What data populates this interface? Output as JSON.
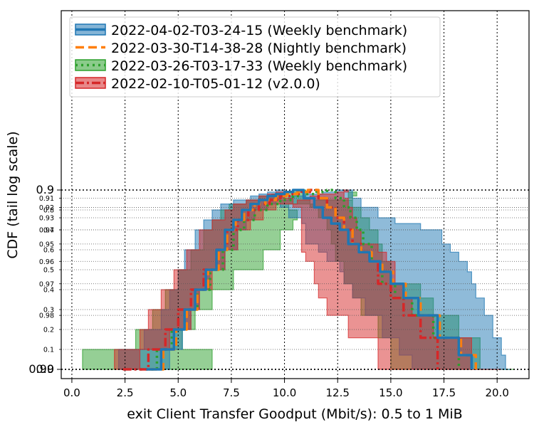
{
  "chart_data": {
    "type": "line",
    "xlabel": "exit Client Transfer Goodput (Mbit/s): 0.5 to 1 MiB",
    "ylabel": "CDF (tail log scale)",
    "xlim": [
      -0.5,
      21.5
    ],
    "x_ticks": [
      0,
      2.5,
      5,
      7.5,
      10,
      12.5,
      15,
      17.5,
      20
    ],
    "x_tick_labels": [
      "0.0",
      "2.5",
      "5.0",
      "7.5",
      "10.0",
      "12.5",
      "15.0",
      "17.5",
      "20.0"
    ],
    "y_scale": "tail-log",
    "y_major_ticks": [
      0.0,
      0.9,
      0.99
    ],
    "y_major_labels": [
      "0.0",
      "0.9",
      "0.99"
    ],
    "y_minor_ticks": [
      0.1,
      0.2,
      0.3,
      0.4,
      0.5,
      0.6,
      0.7,
      0.8,
      0.91,
      0.92,
      0.93,
      0.94,
      0.95,
      0.96,
      0.97,
      0.98
    ],
    "y_minor_labels": [
      "0.1",
      "0.2",
      "0.3",
      "0.4",
      "0.5",
      "0.6",
      "0.7",
      "0.8",
      "0.91",
      "0.92",
      "0.93",
      "0.94",
      "0.95",
      "0.96",
      "0.97",
      "0.98"
    ],
    "grid": true,
    "legend_position": "top-left",
    "colors": {
      "blue": "#1f77b4",
      "orange": "#ff7f0e",
      "green": "#2ca02c",
      "red": "#d62728"
    },
    "series": [
      {
        "name": "2022-04-02-T03-24-15 (Weekly benchmark)",
        "style": "solid",
        "color": "#1f77b4",
        "x": [
          3.5,
          4.2,
          4.8,
          5.3,
          5.8,
          6.3,
          6.8,
          7.2,
          7.6,
          8.0,
          8.4,
          8.8,
          9.2,
          9.6,
          10.0,
          10.4,
          10.9,
          11.4,
          11.8,
          12.2,
          12.6,
          13.0,
          13.5,
          14.0,
          14.5,
          15.0,
          15.6,
          16.3,
          17.2,
          18.2,
          18.8
        ],
        "y": [
          0.0,
          0.1,
          0.2,
          0.3,
          0.4,
          0.5,
          0.6,
          0.7,
          0.75,
          0.8,
          0.83,
          0.85,
          0.87,
          0.88,
          0.89,
          0.9,
          0.91,
          0.92,
          0.93,
          0.935,
          0.94,
          0.95,
          0.955,
          0.96,
          0.965,
          0.97,
          0.975,
          0.98,
          0.985,
          0.988,
          0.99
        ],
        "band_lo": [
          2.2,
          3.4,
          4.2,
          4.6,
          5.0,
          5.3,
          5.8,
          6.2,
          6.6,
          7.0,
          7.6,
          8.4,
          8.8,
          9.2,
          9.6,
          10.0,
          9.8,
          10.2,
          10.8,
          11.0,
          11.0,
          11.6,
          12.0,
          12.6,
          12.8,
          13.2,
          13.8,
          14.6,
          15.4,
          16.0,
          16.6
        ],
        "band_hi": [
          4.6,
          5.2,
          5.6,
          6.0,
          6.5,
          7.2,
          7.8,
          8.2,
          8.6,
          9.2,
          9.6,
          10.2,
          11.0,
          11.8,
          12.4,
          13.2,
          13.6,
          14.4,
          15.2,
          16.4,
          17.4,
          17.8,
          18.2,
          18.6,
          18.8,
          19.0,
          19.4,
          19.8,
          20.2,
          20.4,
          20.6
        ]
      },
      {
        "name": "2022-03-30-T14-38-28 (Nightly benchmark)",
        "style": "dashed",
        "color": "#ff7f0e",
        "x": [
          3.6,
          4.3,
          4.9,
          5.4,
          5.9,
          6.4,
          6.9,
          7.3,
          7.7,
          8.1,
          8.6,
          9.1,
          9.6,
          10.1,
          10.6,
          11.1,
          11.6,
          12.0,
          12.4,
          12.8,
          13.2,
          13.6,
          14.1,
          14.6,
          15.1,
          15.7,
          16.4,
          17.3,
          18.3,
          19.0
        ],
        "y": [
          0.0,
          0.1,
          0.2,
          0.3,
          0.4,
          0.5,
          0.6,
          0.7,
          0.75,
          0.8,
          0.83,
          0.85,
          0.87,
          0.88,
          0.89,
          0.9,
          0.91,
          0.92,
          0.93,
          0.94,
          0.95,
          0.955,
          0.96,
          0.965,
          0.97,
          0.975,
          0.98,
          0.985,
          0.988,
          0.99
        ]
      },
      {
        "name": "2022-03-26-T03-17-33 (Weekly benchmark)",
        "style": "dotted",
        "color": "#2ca02c",
        "x": [
          3.2,
          4.0,
          4.7,
          5.3,
          5.9,
          6.5,
          7.1,
          7.6,
          8.1,
          8.6,
          9.2,
          9.8,
          10.4,
          11.0,
          11.5,
          12.0,
          12.4,
          12.8,
          13.1,
          13.4,
          13.7,
          14.1,
          14.6,
          15.2,
          16.0,
          17.0,
          18.2
        ],
        "y": [
          0.0,
          0.1,
          0.2,
          0.3,
          0.4,
          0.5,
          0.6,
          0.7,
          0.75,
          0.8,
          0.83,
          0.85,
          0.87,
          0.88,
          0.89,
          0.9,
          0.91,
          0.92,
          0.93,
          0.94,
          0.95,
          0.96,
          0.97,
          0.975,
          0.98,
          0.985,
          0.99
        ],
        "band_lo": [
          0.5,
          3.0,
          3.8,
          4.4,
          5.0,
          5.6,
          6.2,
          6.6,
          7.0,
          7.4,
          8.2,
          8.8,
          9.4,
          10.0,
          10.6,
          11.0,
          11.2,
          11.6,
          12.0,
          12.2,
          12.4,
          12.8,
          13.2,
          13.6,
          14.4,
          15.0,
          15.4
        ],
        "band_hi": [
          6.6,
          5.2,
          5.8,
          6.6,
          7.6,
          9.0,
          9.8,
          10.4,
          10.6,
          10.2,
          11.4,
          13.2,
          13.4,
          13.4,
          13.0,
          13.0,
          13.2,
          13.6,
          14.0,
          14.4,
          14.6,
          15.0,
          16.4,
          17.0,
          18.2,
          19.2,
          20.8
        ]
      },
      {
        "name": "2022-02-10-T05-01-12 (v2.0.0)",
        "style": "dashdot",
        "color": "#d62728",
        "x": [
          2.4,
          3.6,
          4.4,
          5.0,
          5.6,
          6.2,
          6.8,
          7.3,
          7.8,
          8.3,
          8.8,
          9.3,
          9.8,
          10.3,
          10.8,
          11.2,
          11.6,
          12.0,
          12.4,
          12.8,
          13.2,
          13.6,
          14.0,
          14.4,
          15.0,
          15.6,
          16.4,
          17.2
        ],
        "y": [
          0.0,
          0.1,
          0.2,
          0.3,
          0.4,
          0.5,
          0.6,
          0.7,
          0.75,
          0.8,
          0.83,
          0.85,
          0.87,
          0.88,
          0.89,
          0.9,
          0.91,
          0.92,
          0.93,
          0.94,
          0.95,
          0.955,
          0.96,
          0.97,
          0.975,
          0.98,
          0.985,
          0.99
        ],
        "band_lo": [
          2.0,
          3.2,
          3.6,
          4.2,
          4.8,
          5.4,
          6.0,
          6.6,
          7.2,
          7.6,
          8.2,
          8.8,
          9.2,
          9.6,
          10.0,
          10.0,
          10.4,
          10.8,
          10.8,
          10.8,
          10.8,
          11.0,
          11.4,
          11.6,
          12.0,
          13.0,
          14.4,
          15.6
        ],
        "band_hi": [
          3.2,
          4.6,
          5.6,
          6.0,
          6.6,
          7.2,
          7.8,
          8.4,
          9.0,
          9.6,
          10.6,
          11.2,
          11.6,
          12.4,
          13.0,
          12.8,
          13.0,
          13.2,
          13.4,
          13.6,
          14.4,
          14.8,
          15.2,
          15.6,
          16.0,
          17.0,
          18.8,
          20.2
        ]
      }
    ]
  }
}
